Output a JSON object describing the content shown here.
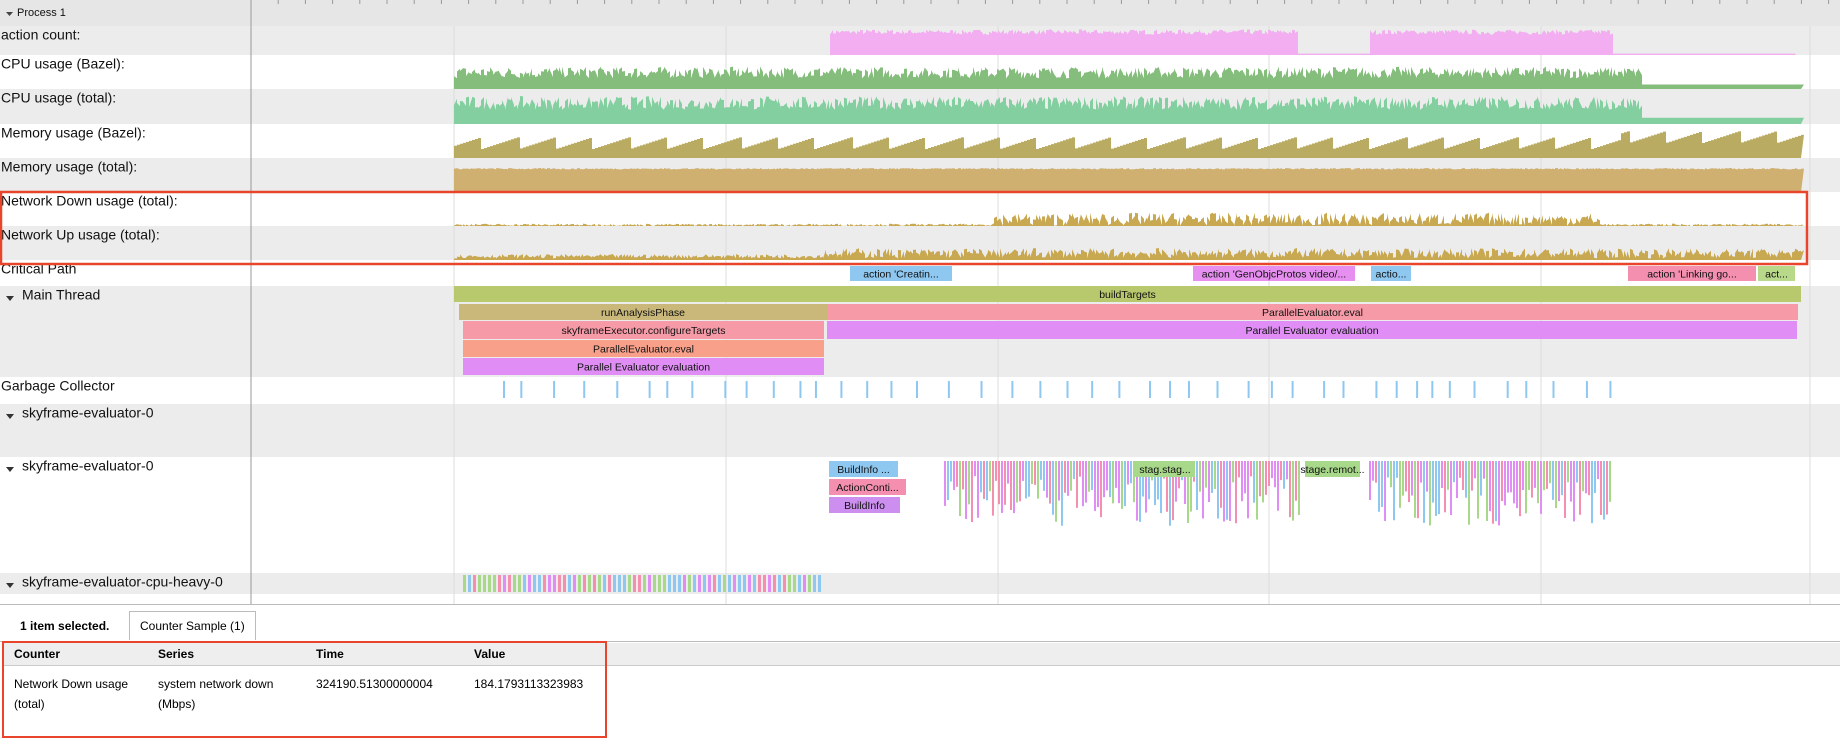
{
  "process": "Process 1",
  "tracks": [
    "action count:",
    "CPU usage (Bazel):",
    "CPU usage (total):",
    "Memory usage (Bazel):",
    "Memory usage (total):",
    "Network Down usage (total):",
    "Network Up usage (total):",
    "Critical Path",
    "Main Thread",
    "Garbage Collector",
    "skyframe-evaluator-0",
    "skyframe-evaluator-0",
    "skyframe-evaluator-cpu-heavy-0"
  ],
  "slices": [
    "buildTargets",
    "runAnalysisPhase",
    "ParallelEvaluator.eval",
    "skyframeExecutor.configureTargets",
    "Parallel Evaluator evaluation",
    "ParallelEvaluator.eval",
    "Parallel Evaluator evaluation",
    "action 'Creatin...",
    "action 'GenObjcProtos video/...",
    "actio...",
    "action 'Linking go...",
    "act...",
    "BuildInfo ...",
    "ActionConti...",
    "BuildInfo",
    "stag.stag...",
    "stage.remot..."
  ],
  "panel": {
    "selection": "1 item selected.",
    "tab": "Counter Sample (1)",
    "table": {
      "headers": [
        "Counter",
        "Series",
        "Time",
        "Value"
      ],
      "rows": [
        [
          "Network Down usage (total)",
          "system network down (Mbps)",
          "324190.51300000004",
          "184.1793113323983"
        ]
      ]
    }
  }
}
